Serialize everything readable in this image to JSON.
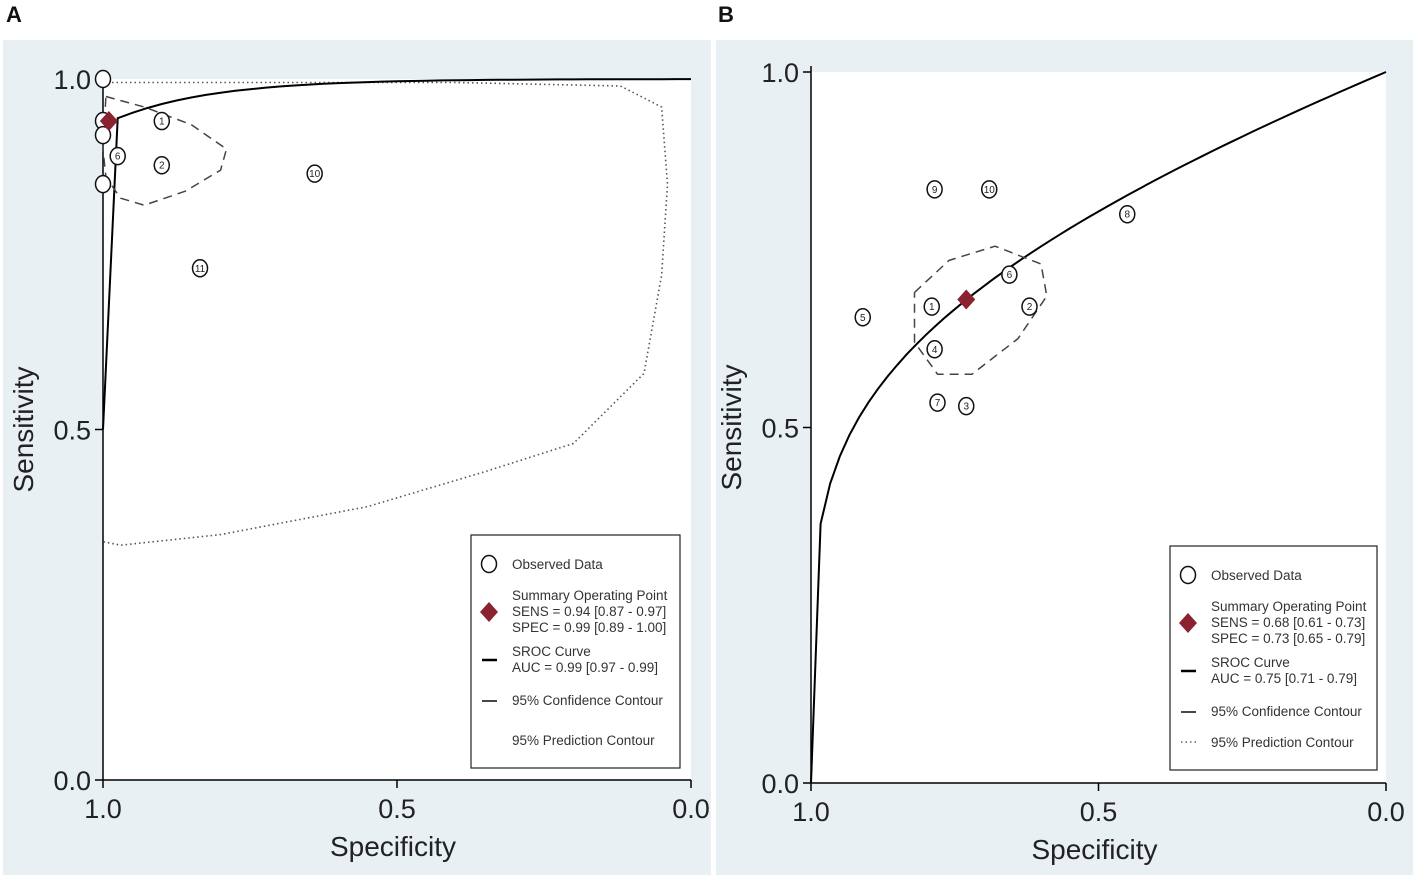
{
  "panel_labels": [
    "A",
    "B"
  ],
  "colors": {
    "background": "#e8f0f4",
    "plot": "#ffffff",
    "summary": "#8b2230",
    "curve": "#000000"
  },
  "chart_data": [
    {
      "type": "scatter",
      "panel": "A",
      "xlabel": "Specificity",
      "ylabel": "Sensitivity",
      "xlim": [
        1.0,
        0.0
      ],
      "ylim": [
        0.0,
        1.0
      ],
      "x_ticks": [
        "1.0",
        "0.5",
        "0.0"
      ],
      "y_ticks": [
        "0.0",
        "0.5",
        "1.0"
      ],
      "observed": [
        {
          "label": "",
          "spec": 1.0,
          "sens": 1.0
        },
        {
          "label": "",
          "spec": 1.0,
          "sens": 0.94
        },
        {
          "label": "",
          "spec": 1.0,
          "sens": 0.92
        },
        {
          "label": "",
          "spec": 1.0,
          "sens": 0.85
        },
        {
          "label": "1",
          "spec": 0.9,
          "sens": 0.94
        },
        {
          "label": "6",
          "spec": 0.975,
          "sens": 0.89
        },
        {
          "label": "2",
          "spec": 0.9,
          "sens": 0.877
        },
        {
          "label": "10",
          "spec": 0.64,
          "sens": 0.865
        },
        {
          "label": "11",
          "spec": 0.835,
          "sens": 0.73
        }
      ],
      "summary_point": {
        "spec": 0.99,
        "sens": 0.94
      },
      "legend": {
        "observed": "Observed Data",
        "summary_lines": [
          "Summary Operating Point",
          "SENS = 0.94 [0.87 - 0.97]",
          "SPEC = 0.99 [0.89 - 1.00]"
        ],
        "sroc_lines": [
          "SROC Curve",
          "AUC = 0.99 [0.97 - 0.99]"
        ],
        "confidence": "95% Confidence Contour",
        "prediction": "95% Prediction Contour"
      }
    },
    {
      "type": "scatter",
      "panel": "B",
      "xlabel": "Specificity",
      "ylabel": "Sensitivity",
      "xlim": [
        1.0,
        0.0
      ],
      "ylim": [
        0.0,
        1.0
      ],
      "x_ticks": [
        "1.0",
        "0.5",
        "0.0"
      ],
      "y_ticks": [
        "0.0",
        "0.5",
        "1.0"
      ],
      "observed": [
        {
          "label": "9",
          "spec": 0.785,
          "sens": 0.835
        },
        {
          "label": "10",
          "spec": 0.69,
          "sens": 0.835
        },
        {
          "label": "8",
          "spec": 0.45,
          "sens": 0.8
        },
        {
          "label": "6",
          "spec": 0.655,
          "sens": 0.715
        },
        {
          "label": "1",
          "spec": 0.79,
          "sens": 0.67
        },
        {
          "label": "2",
          "spec": 0.62,
          "sens": 0.67
        },
        {
          "label": "5",
          "spec": 0.91,
          "sens": 0.655
        },
        {
          "label": "4",
          "spec": 0.785,
          "sens": 0.61
        },
        {
          "label": "7",
          "spec": 0.78,
          "sens": 0.535
        },
        {
          "label": "3",
          "spec": 0.73,
          "sens": 0.53
        }
      ],
      "summary_point": {
        "spec": 0.73,
        "sens": 0.68
      },
      "legend": {
        "observed": "Observed Data",
        "summary_lines": [
          "Summary Operating Point",
          "SENS = 0.68 [0.61 - 0.73]",
          "SPEC = 0.73 [0.65 - 0.79]"
        ],
        "sroc_lines": [
          "SROC Curve",
          "AUC = 0.75 [0.71 - 0.79]"
        ],
        "confidence": "95% Confidence Contour",
        "prediction": "95% Prediction Contour"
      }
    }
  ]
}
